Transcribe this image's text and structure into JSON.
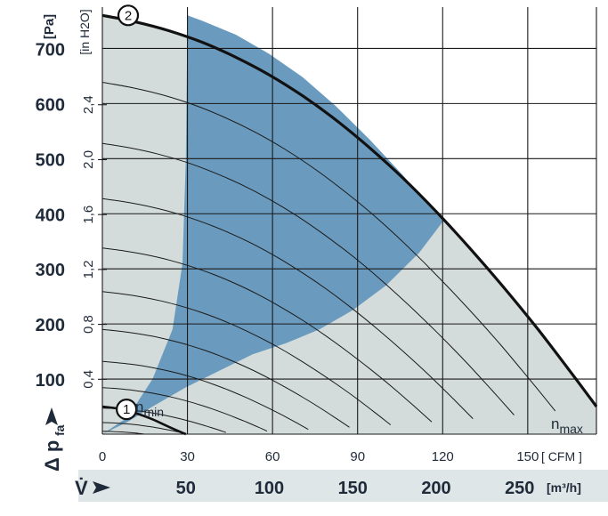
{
  "chart_data": {
    "type": "line",
    "x_unit_primary": "[m³/h]",
    "x_unit_secondary": "[ CFM ]",
    "y_unit_primary": "[Pa]",
    "y_unit_secondary": "[in H2O]",
    "x_symbol": "V̇",
    "y_symbol": "Δ p",
    "y_symbol_sub": "fa",
    "xlim": [
      0,
      296
    ],
    "ylim": [
      0,
      775
    ],
    "x_ticks": [
      50,
      100,
      150,
      200,
      250
    ],
    "x_tick_labels": [
      "50",
      "100",
      "150",
      "200",
      "250"
    ],
    "cfm_ticks": [
      0,
      30,
      60,
      90,
      120,
      150
    ],
    "cfm_tick_labels": [
      "0",
      "30",
      "60",
      "90",
      "120",
      "150"
    ],
    "y_ticks": [
      100,
      200,
      300,
      400,
      500,
      600,
      700
    ],
    "y_tick_labels": [
      "100",
      "200",
      "300",
      "400",
      "500",
      "600",
      "700"
    ],
    "inh2o_ticks": [
      0.4,
      0.8,
      1.2,
      1.6,
      2.0,
      2.4
    ],
    "inh2o_tick_labels": [
      "0,4",
      "0,8",
      "1,2",
      "1,6",
      "2,0",
      "2,4"
    ],
    "grid": true,
    "series": [
      {
        "name": "2",
        "speed_label": "n",
        "speed_sub": "max",
        "x": [
          0,
          20,
          40,
          60,
          80,
          100,
          120,
          140,
          160,
          180,
          200,
          220,
          240,
          260,
          280,
          296
        ],
        "y": [
          760,
          748,
          732,
          711,
          684,
          652,
          614,
          570,
          520,
          465,
          404,
          338,
          268,
          194,
          115,
          50
        ]
      },
      {
        "name": "1",
        "speed_label": "n",
        "speed_sub": "min",
        "x": [
          0,
          10,
          20,
          30,
          40,
          50
        ],
        "y": [
          50,
          46,
          38,
          27,
          13,
          0
        ]
      }
    ],
    "envelope": {
      "x": [
        0,
        20,
        40,
        60,
        80,
        100,
        120,
        140,
        160,
        180,
        200,
        220,
        240,
        260,
        280,
        296,
        296,
        0
      ],
      "y": [
        760,
        748,
        732,
        711,
        684,
        652,
        614,
        570,
        520,
        465,
        404,
        338,
        268,
        194,
        115,
        50,
        0,
        0
      ]
    },
    "optimal_region": {
      "x": [
        0,
        15,
        30,
        42,
        48,
        50,
        51,
        60,
        80,
        100,
        120,
        140,
        160,
        180,
        200,
        205,
        190,
        170,
        150,
        130,
        110,
        90,
        70,
        50,
        30,
        15,
        0
      ],
      "y": [
        0,
        30,
        100,
        190,
        310,
        500,
        760,
        750,
        725,
        690,
        648,
        595,
        535,
        470,
        400,
        390,
        330,
        270,
        225,
        190,
        165,
        145,
        115,
        85,
        50,
        22,
        0
      ]
    },
    "colors": {
      "envelope_fill": "#d4dcdb",
      "optimal_fill": "#6a9bbe",
      "curve": "#111111",
      "grid": "#1a1a1a",
      "background": "#ffffff"
    }
  }
}
